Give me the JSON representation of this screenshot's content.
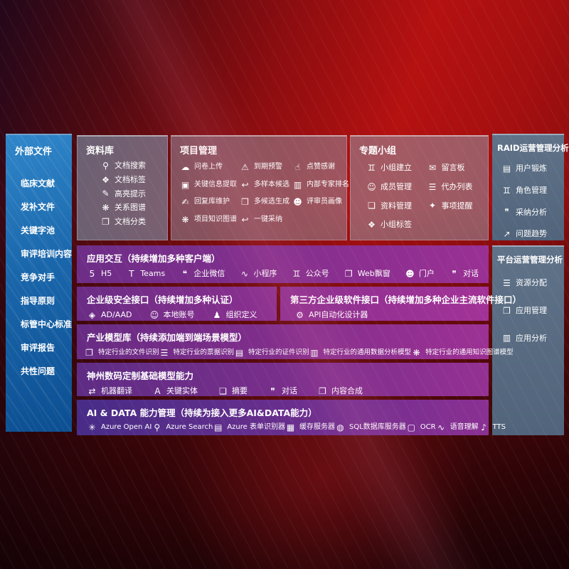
{
  "colors": {
    "bg_red": "#b51111",
    "sidebar_blue": "#1b67ae",
    "panel_purple": "#8c3090",
    "panel_slate": "#56697f",
    "glass_gray": "#95919f"
  },
  "sidebar": {
    "title": "外部文件",
    "items": [
      "临床文献",
      "发补文件",
      "关键字池",
      "审评培训内容",
      "竞争对手",
      "指导原则",
      "标管中心标准",
      "审评报告",
      "共性问题"
    ]
  },
  "panels": {
    "ziliaoku": {
      "title": "资料库",
      "items": [
        {
          "icon": "doc-search",
          "label": "文档搜索"
        },
        {
          "icon": "tag",
          "label": "文档标签"
        },
        {
          "icon": "pen",
          "label": "高亮提示"
        },
        {
          "icon": "network",
          "label": "关系图谱"
        },
        {
          "icon": "docs",
          "label": "文档分类"
        }
      ]
    },
    "project": {
      "title": "项目管理",
      "items": [
        {
          "icon": "cloud-upload",
          "label": "问卷上传"
        },
        {
          "icon": "alarm",
          "label": "到期预警"
        },
        {
          "icon": "thumbs-up",
          "label": "点赞感谢"
        },
        {
          "icon": "frame",
          "label": "关键信息提取"
        },
        {
          "icon": "reply",
          "label": "多样本候选"
        },
        {
          "icon": "podium",
          "label": "内部专家排名"
        },
        {
          "icon": "write",
          "label": "回复库维护"
        },
        {
          "icon": "grid",
          "label": "多候选生成"
        },
        {
          "icon": "person",
          "label": "评审员画像"
        },
        {
          "icon": "network",
          "label": "项目知识图谱"
        },
        {
          "icon": "reply",
          "label": "一键采纳"
        }
      ]
    },
    "group": {
      "title": "专题小组",
      "items": [
        {
          "icon": "people",
          "label": "小组建立"
        },
        {
          "icon": "bbs",
          "label": "留言板"
        },
        {
          "icon": "person-add",
          "label": "成员管理"
        },
        {
          "icon": "todo-list",
          "label": "代办列表"
        },
        {
          "icon": "inbox",
          "label": "资料管理"
        },
        {
          "icon": "bell",
          "label": "事项提醒"
        },
        {
          "icon": "tag",
          "label": "小组标签"
        }
      ]
    },
    "raid": {
      "title": "RAID运营管理分析",
      "items": [
        {
          "icon": "id-card",
          "label": "用户锻炼"
        },
        {
          "icon": "people",
          "label": "角色管理"
        },
        {
          "icon": "qa-chat",
          "label": "采纳分析"
        },
        {
          "icon": "trend",
          "label": "问题趋势"
        }
      ]
    },
    "platform": {
      "title": "平台运营管理分析",
      "items": [
        {
          "icon": "todo-list",
          "label": "资源分配"
        },
        {
          "icon": "apps",
          "label": "应用管理"
        },
        {
          "icon": "chart",
          "label": "应用分析"
        }
      ]
    },
    "interaction": {
      "title": "应用交互（持续增加多种客户端）",
      "items": [
        {
          "icon": "h5",
          "label": "H5"
        },
        {
          "icon": "teams",
          "label": "Teams"
        },
        {
          "icon": "wechat",
          "label": "企业微信"
        },
        {
          "icon": "miniprogram",
          "label": "小程序"
        },
        {
          "icon": "people",
          "label": "公众号"
        },
        {
          "icon": "window",
          "label": "Web飘窗"
        },
        {
          "icon": "person",
          "label": "门户"
        },
        {
          "icon": "dialog",
          "label": "对话"
        }
      ]
    },
    "security": {
      "title": "企业级安全接口（持续增加多种认证）",
      "items": [
        {
          "icon": "shield",
          "label": "AD/AAD"
        },
        {
          "icon": "person-add",
          "label": "本地账号"
        },
        {
          "icon": "org",
          "label": "组织定义"
        }
      ]
    },
    "thirdparty": {
      "title": "第三方企业级软件接口（持续增加多种企业主流软件接口）",
      "items": [
        {
          "icon": "gear",
          "label": "API自动化设计器"
        }
      ]
    },
    "industry": {
      "title": "产业模型库（持续添加端到端场景模型）",
      "items": [
        {
          "icon": "docs",
          "label": "特定行业的文件识别"
        },
        {
          "icon": "todo-list",
          "label": "特定行业的票据识别"
        },
        {
          "icon": "id-card",
          "label": "特定行业的证件识别"
        },
        {
          "icon": "chart",
          "label": "特定行业的通用数据分析模型"
        },
        {
          "icon": "network",
          "label": "特定行业的通用知识图谱模型"
        }
      ]
    },
    "basemodel": {
      "title": "神州数码定制基础模型能力",
      "items": [
        {
          "icon": "translate",
          "label": "机器翻译"
        },
        {
          "icon": "entity",
          "label": "关键实体"
        },
        {
          "icon": "summary",
          "label": "摘要"
        },
        {
          "icon": "dialog",
          "label": "对话"
        },
        {
          "icon": "compose",
          "label": "内容合成"
        }
      ]
    },
    "aidata": {
      "title": "AI & DATA 能力管理（持续为接入更多AI&DATA能力）",
      "items": [
        {
          "icon": "openai",
          "label": "Azure Open AI"
        },
        {
          "icon": "search",
          "label": "Azure Search"
        },
        {
          "icon": "form",
          "label": "Azure 表单识别器"
        },
        {
          "icon": "cache",
          "label": "缓存服务器"
        },
        {
          "icon": "db",
          "label": "SQL数据库服务器"
        },
        {
          "icon": "ocr",
          "label": "OCR"
        },
        {
          "icon": "voice",
          "label": "语音理解"
        },
        {
          "icon": "tts",
          "label": "TTS"
        }
      ]
    }
  }
}
